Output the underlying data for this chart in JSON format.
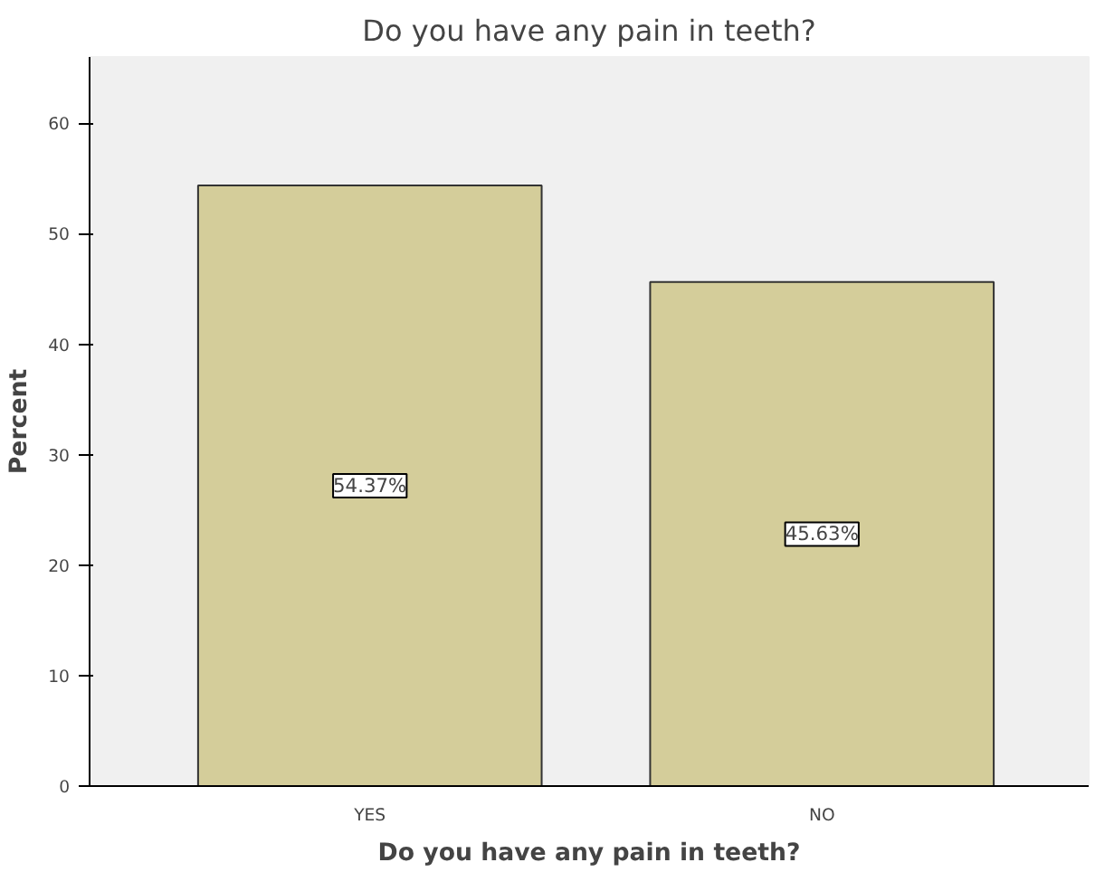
{
  "chart_data": {
    "type": "bar",
    "title": "Do you have any pain in teeth?",
    "xlabel": "Do you have any pain in teeth?",
    "ylabel": "Percent",
    "categories": [
      "YES",
      "NO"
    ],
    "values": [
      54.37,
      45.63
    ],
    "value_labels": [
      "54.37%",
      "45.63%"
    ],
    "color": "#d4cd9a",
    "ylim": [
      0,
      66
    ],
    "yticks": [
      0,
      10,
      20,
      30,
      40,
      50,
      60
    ],
    "grid": false
  }
}
